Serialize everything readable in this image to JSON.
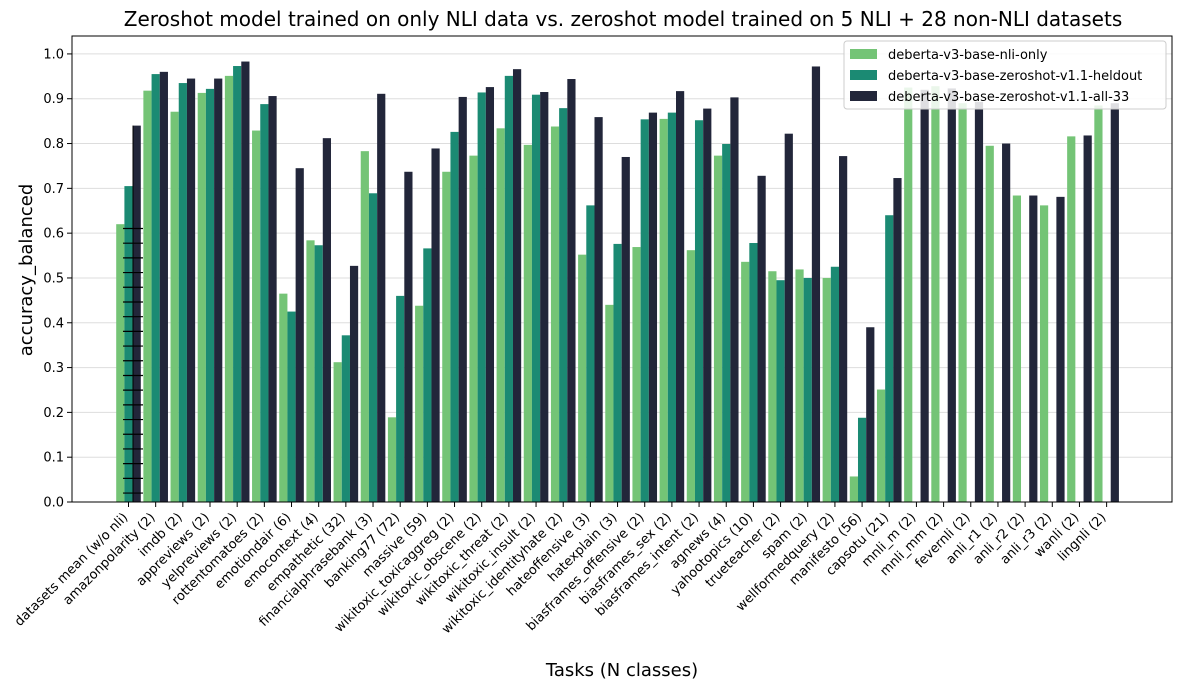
{
  "chart_data": {
    "type": "bar",
    "title": "Zeroshot model trained on only NLI data vs. zeroshot model trained on 5 NLI + 28 non-NLI datasets",
    "xlabel": "Tasks (N classes)",
    "ylabel": "accuracy_balanced",
    "ylim": [
      0,
      1.04
    ],
    "yticks": [
      "0.0",
      "0.1",
      "0.2",
      "0.3",
      "0.4",
      "0.5",
      "0.6",
      "0.7",
      "0.8",
      "0.9",
      "1.0"
    ],
    "grid": "horizontal",
    "legend_position": "top-right",
    "categories": [
      "datasets mean (w/o nli)",
      "amazonpolarity (2)",
      "imdb (2)",
      "appreviews (2)",
      "yelpreviews (2)",
      "rottentomatoes (2)",
      "emotiondair (6)",
      "emocontext (4)",
      "empathetic (32)",
      "financialphrasebank (3)",
      "banking77 (72)",
      "massive (59)",
      "wikitoxic_toxicaggreg (2)",
      "wikitoxic_obscene (2)",
      "wikitoxic_threat (2)",
      "wikitoxic_insult (2)",
      "wikitoxic_identityhate (2)",
      "hateoffensive (3)",
      "hatexplain (3)",
      "biasframes_offensive (2)",
      "biasframes_sex (2)",
      "biasframes_intent (2)",
      "agnews (4)",
      "yahootopics (10)",
      "trueteacher (2)",
      "spam (2)",
      "wellformedquery (2)",
      "manifesto (56)",
      "capsotu (21)",
      "mnli_m (2)",
      "mnli_mm (2)",
      "fevernli (2)",
      "anli_r1 (2)",
      "anli_r2 (2)",
      "anli_r3 (2)",
      "wanli (2)",
      "lingnli (2)"
    ],
    "series": [
      {
        "name": "deberta-v3-base-nli-only",
        "color": "#74c476",
        "values": [
          0.62,
          0.918,
          0.871,
          0.913,
          0.951,
          0.829,
          0.465,
          0.584,
          0.312,
          0.783,
          0.189,
          0.438,
          0.737,
          0.773,
          0.834,
          0.797,
          0.838,
          0.552,
          0.44,
          0.569,
          0.855,
          0.562,
          0.773,
          0.536,
          0.515,
          0.519,
          0.5,
          0.057,
          0.251,
          0.925,
          0.928,
          0.89,
          0.795,
          0.684,
          0.662,
          0.816,
          0.885
        ]
      },
      {
        "name": "deberta-v3-base-zeroshot-v1.1-heldout",
        "color": "#1b8a73",
        "values": [
          0.705,
          0.955,
          0.935,
          0.922,
          0.973,
          0.888,
          0.425,
          0.573,
          0.372,
          0.689,
          0.46,
          0.566,
          0.826,
          0.914,
          0.951,
          0.909,
          0.879,
          0.662,
          0.576,
          0.854,
          0.869,
          0.852,
          0.799,
          0.578,
          0.495,
          0.5,
          0.525,
          0.188,
          0.64,
          null,
          null,
          null,
          null,
          null,
          null,
          null,
          null
        ]
      },
      {
        "name": "deberta-v3-base-zeroshot-v1.1-all-33",
        "color": "#22263a",
        "values": [
          0.84,
          0.96,
          0.945,
          0.945,
          0.983,
          0.906,
          0.745,
          0.812,
          0.527,
          0.911,
          0.737,
          0.789,
          0.904,
          0.926,
          0.966,
          0.915,
          0.944,
          0.859,
          0.77,
          0.869,
          0.917,
          0.878,
          0.903,
          0.728,
          0.822,
          0.972,
          0.772,
          0.39,
          0.723,
          0.92,
          0.923,
          0.893,
          0.8,
          0.684,
          0.681,
          0.818,
          0.89
        ]
      }
    ]
  }
}
